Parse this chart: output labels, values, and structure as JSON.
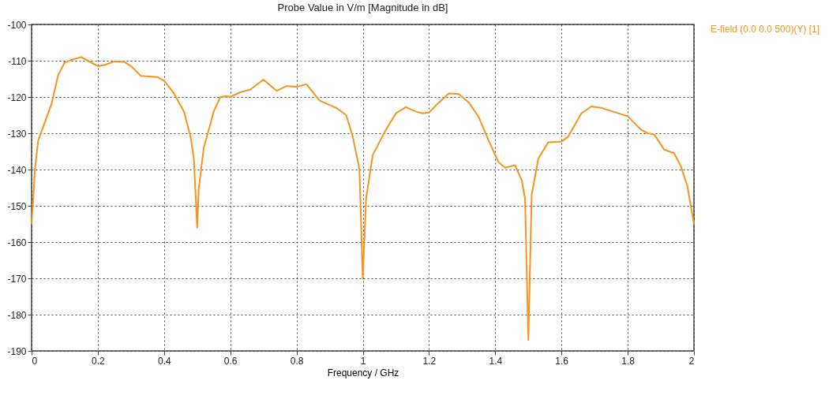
{
  "chart_data": {
    "type": "line",
    "title": "Probe Value in V/m [Magnitude in dB]",
    "xlabel": "Frequency / GHz",
    "x": [
      0,
      0.005,
      0.01,
      0.02,
      0.04,
      0.06,
      0.08,
      0.1,
      0.12,
      0.15,
      0.17,
      0.2,
      0.22,
      0.25,
      0.28,
      0.3,
      0.33,
      0.38,
      0.4,
      0.43,
      0.46,
      0.48,
      0.49,
      0.5,
      0.505,
      0.52,
      0.55,
      0.57,
      0.59,
      0.6,
      0.63,
      0.66,
      0.7,
      0.74,
      0.77,
      0.8,
      0.83,
      0.87,
      0.92,
      0.95,
      0.97,
      0.99,
      1.0,
      1.01,
      1.03,
      1.07,
      1.1,
      1.13,
      1.16,
      1.18,
      1.2,
      1.23,
      1.26,
      1.29,
      1.32,
      1.35,
      1.38,
      1.41,
      1.43,
      1.46,
      1.48,
      1.49,
      1.5,
      1.51,
      1.53,
      1.56,
      1.6,
      1.62,
      1.66,
      1.69,
      1.72,
      1.8,
      1.84,
      1.86,
      1.88,
      1.91,
      1.94,
      1.96,
      1.98,
      2.0
    ],
    "series": [
      {
        "name": "E-field (0.0 0.0 500)(Y) [1]",
        "color": "#f7931e",
        "values": [
          -155,
          -148,
          -140,
          -132,
          -127,
          -122,
          -114,
          -110.5,
          -109.8,
          -109,
          -110,
          -111.5,
          -111.2,
          -110.2,
          -110.3,
          -111.5,
          -114.2,
          -114.5,
          -115.5,
          -119,
          -124,
          -131,
          -137,
          -156,
          -145,
          -134,
          -124,
          -120,
          -119.8,
          -120,
          -118.7,
          -118,
          -115.2,
          -118.3,
          -117,
          -117.2,
          -116.5,
          -121,
          -123,
          -125,
          -131,
          -140,
          -170,
          -148,
          -136,
          -129,
          -124.5,
          -122.8,
          -124,
          -124.5,
          -124.3,
          -121.5,
          -119,
          -119.2,
          -121.5,
          -125.5,
          -132,
          -138,
          -139.5,
          -138.8,
          -143,
          -148,
          -187,
          -147,
          -137,
          -132.5,
          -132.3,
          -131,
          -124.5,
          -122.6,
          -123,
          -125.3,
          -129,
          -130,
          -130.3,
          -134.5,
          -135.5,
          -139,
          -144.5,
          -155
        ]
      }
    ],
    "xlim": [
      0,
      2
    ],
    "xticks": [
      0,
      0.2,
      0.4,
      0.6,
      0.8,
      1,
      1.2,
      1.4,
      1.6,
      1.8,
      2
    ],
    "ylim": [
      -190,
      -100
    ],
    "yticks": [
      -190,
      -180,
      -170,
      -160,
      -150,
      -140,
      -130,
      -120,
      -110,
      -100
    ],
    "grid": true,
    "legend": "top right",
    "marker": "none",
    "line_style": "solid"
  }
}
